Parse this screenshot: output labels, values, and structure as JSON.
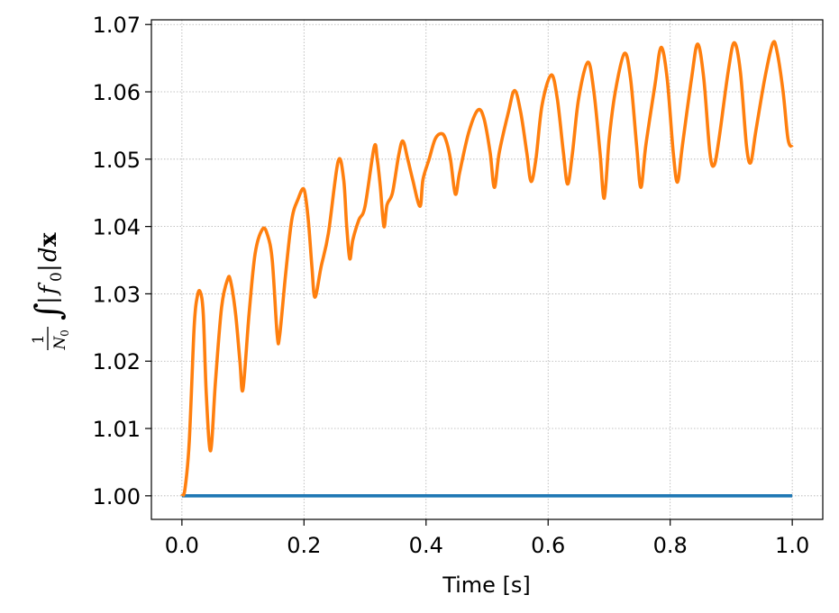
{
  "chart_data": {
    "type": "line",
    "title": "",
    "xlabel": "Time [s]",
    "ylabel": "1/N0 ∫|f0|dx",
    "ylabel_parts": {
      "num": "1",
      "den": "N",
      "den_sub": "0",
      "integral": "∫",
      "bar_open": "|",
      "f": "f",
      "f_sub": "0",
      "bar_close": "|",
      "d": "d",
      "x": "x"
    },
    "xlim": [
      -0.05,
      1.05
    ],
    "ylim": [
      0.9965,
      1.0707
    ],
    "xticks": [
      0.0,
      0.2,
      0.4,
      0.6,
      0.8,
      1.0
    ],
    "xtick_labels": [
      "0.0",
      "0.2",
      "0.4",
      "0.6",
      "0.8",
      "1.0"
    ],
    "yticks": [
      1.0,
      1.01,
      1.02,
      1.03,
      1.04,
      1.05,
      1.06,
      1.07
    ],
    "ytick_labels": [
      "1.00",
      "1.01",
      "1.02",
      "1.03",
      "1.04",
      "1.05",
      "1.06",
      "1.07"
    ],
    "grid": true,
    "series": [
      {
        "color": "#1f77b4",
        "x": [
          0.0,
          1.0
        ],
        "y": [
          1.0,
          1.0
        ]
      },
      {
        "color": "#ff7f0e",
        "x": [
          0.0,
          0.005,
          0.012,
          0.02,
          0.025,
          0.03,
          0.035,
          0.04,
          0.047,
          0.055,
          0.065,
          0.075,
          0.08,
          0.088,
          0.095,
          0.1,
          0.11,
          0.12,
          0.132,
          0.14,
          0.148,
          0.156,
          0.16,
          0.17,
          0.18,
          0.19,
          0.2,
          0.207,
          0.213,
          0.218,
          0.228,
          0.24,
          0.256,
          0.265,
          0.27,
          0.275,
          0.28,
          0.29,
          0.3,
          0.315,
          0.32,
          0.325,
          0.331,
          0.336,
          0.345,
          0.355,
          0.362,
          0.37,
          0.378,
          0.39,
          0.395,
          0.405,
          0.415,
          0.425,
          0.432,
          0.44,
          0.448,
          0.455,
          0.47,
          0.485,
          0.495,
          0.505,
          0.512,
          0.52,
          0.535,
          0.545,
          0.555,
          0.565,
          0.572,
          0.58,
          0.59,
          0.605,
          0.615,
          0.625,
          0.632,
          0.64,
          0.65,
          0.665,
          0.675,
          0.685,
          0.692,
          0.7,
          0.71,
          0.725,
          0.735,
          0.745,
          0.752,
          0.76,
          0.775,
          0.785,
          0.795,
          0.805,
          0.812,
          0.82,
          0.835,
          0.845,
          0.855,
          0.865,
          0.872,
          0.88,
          0.895,
          0.905,
          0.915,
          0.925,
          0.932,
          0.94,
          0.955,
          0.968,
          0.975,
          0.985,
          0.993,
          1.0
        ],
        "y": [
          1.0,
          1.001,
          1.008,
          1.025,
          1.0295,
          1.0303,
          1.027,
          1.015,
          1.0067,
          1.017,
          1.028,
          1.0322,
          1.0318,
          1.027,
          1.02,
          1.0158,
          1.027,
          1.036,
          1.0396,
          1.0388,
          1.035,
          1.024,
          1.0237,
          1.033,
          1.041,
          1.044,
          1.0455,
          1.041,
          1.034,
          1.0295,
          1.034,
          1.039,
          1.0497,
          1.047,
          1.04,
          1.0352,
          1.038,
          1.041,
          1.043,
          1.0518,
          1.05,
          1.046,
          1.04,
          1.0432,
          1.045,
          1.0505,
          1.0527,
          1.05,
          1.047,
          1.043,
          1.047,
          1.05,
          1.053,
          1.0538,
          1.053,
          1.05,
          1.0448,
          1.048,
          1.054,
          1.0573,
          1.056,
          1.051,
          1.0458,
          1.051,
          1.057,
          1.0602,
          1.057,
          1.051,
          1.0467,
          1.05,
          1.058,
          1.0625,
          1.059,
          1.051,
          1.0463,
          1.051,
          1.059,
          1.0644,
          1.06,
          1.051,
          1.0442,
          1.053,
          1.06,
          1.0657,
          1.062,
          1.052,
          1.0458,
          1.052,
          1.061,
          1.0666,
          1.062,
          1.051,
          1.0466,
          1.052,
          1.062,
          1.0671,
          1.062,
          1.051,
          1.0491,
          1.053,
          1.063,
          1.0673,
          1.063,
          1.052,
          1.0495,
          1.054,
          1.062,
          1.0672,
          1.066,
          1.06,
          1.053,
          1.0518
        ]
      }
    ]
  }
}
